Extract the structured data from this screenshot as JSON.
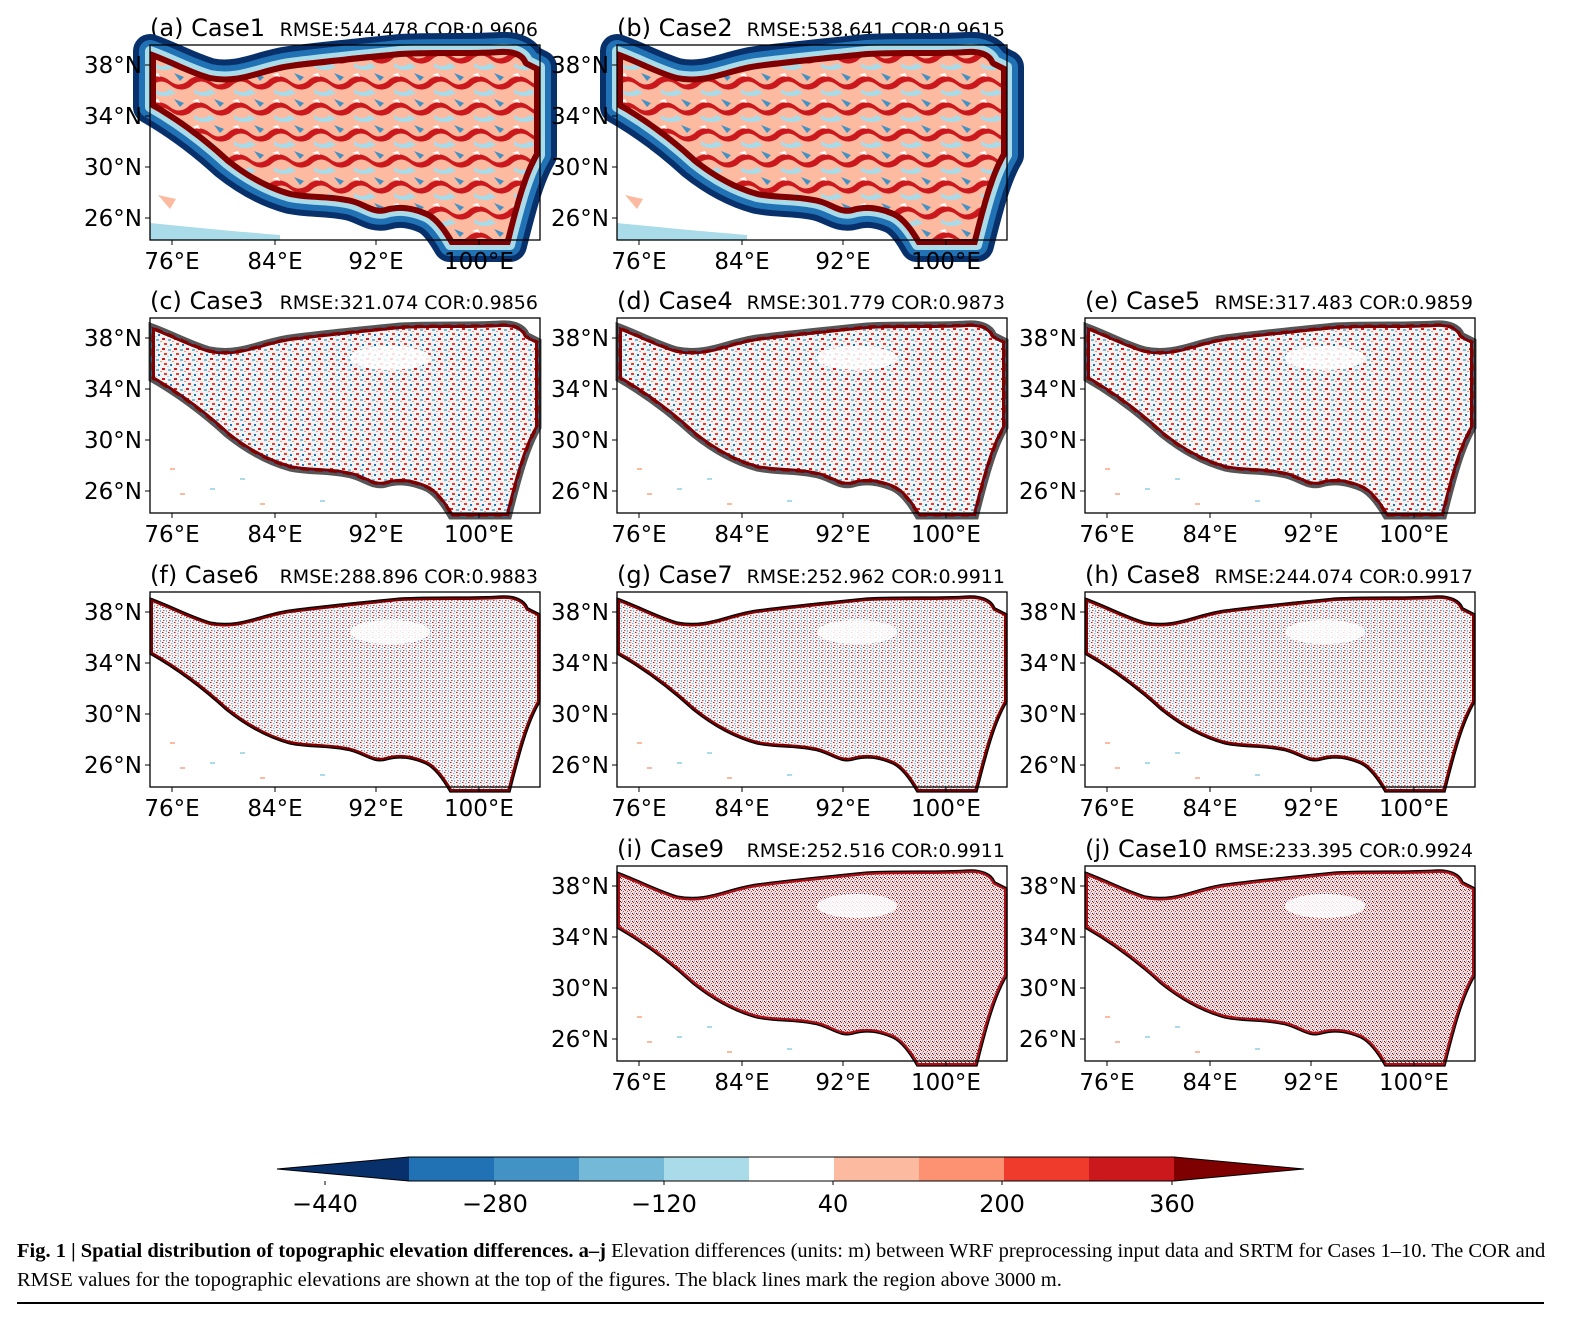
{
  "figure": {
    "panels": [
      {
        "id": "a",
        "title": "(a) Case1",
        "stats": "RMSE:544.478 COR:0.9606",
        "style": "coarse",
        "row": 0,
        "col": 0
      },
      {
        "id": "b",
        "title": "(b) Case2",
        "stats": "RMSE:538.641 COR:0.9615",
        "style": "coarse",
        "row": 0,
        "col": 1
      },
      {
        "id": "c",
        "title": "(c) Case3",
        "stats": "RMSE:321.074 COR:0.9856",
        "style": "medium",
        "row": 1,
        "col": 0
      },
      {
        "id": "d",
        "title": "(d) Case4",
        "stats": "RMSE:301.779 COR:0.9873",
        "style": "medium",
        "row": 1,
        "col": 1
      },
      {
        "id": "e",
        "title": "(e) Case5",
        "stats": "RMSE:317.483 COR:0.9859",
        "style": "medium",
        "row": 1,
        "col": 2
      },
      {
        "id": "f",
        "title": "(f) Case6",
        "stats": "RMSE:288.896 COR:0.9883",
        "style": "fine",
        "row": 2,
        "col": 0
      },
      {
        "id": "g",
        "title": "(g) Case7",
        "stats": "RMSE:252.962 COR:0.9911",
        "style": "fine",
        "row": 2,
        "col": 1
      },
      {
        "id": "h",
        "title": "(h) Case8",
        "stats": "RMSE:244.074 COR:0.9917",
        "style": "fine",
        "row": 2,
        "col": 2
      },
      {
        "id": "i",
        "title": "(i) Case9",
        "stats": "RMSE:252.516 COR:0.9911",
        "style": "finest",
        "row": 3,
        "col": 1
      },
      {
        "id": "j",
        "title": "(j) Case10",
        "stats": "RMSE:233.395 COR:0.9924",
        "style": "finest",
        "row": 3,
        "col": 2
      }
    ],
    "lat_ticks": [
      "38°N",
      "34°N",
      "30°N",
      "26°N"
    ],
    "lon_ticks": [
      "76°E",
      "84°E",
      "92°E",
      "100°E"
    ],
    "colorbar": {
      "colors": [
        "#08306b",
        "#2171b5",
        "#4292c6",
        "#74b9d8",
        "#a9dbe8",
        "#ffffff",
        "#fcbba1",
        "#fc9272",
        "#ef3b2c",
        "#cb181d",
        "#7f0000"
      ],
      "tick_labels": [
        "−440",
        "−280",
        "−120",
        "40",
        "200",
        "360"
      ]
    }
  },
  "caption": {
    "label": "Fig. 1 | Spatial distribution of topographic elevation differences. a–j",
    "text": " Elevation differences (units: m) between WRF preprocessing input data and SRTM for Cases 1–10. The COR and RMSE values for the topographic elevations are shown at the top of the figures. The black lines mark the region above 3000 m."
  }
}
